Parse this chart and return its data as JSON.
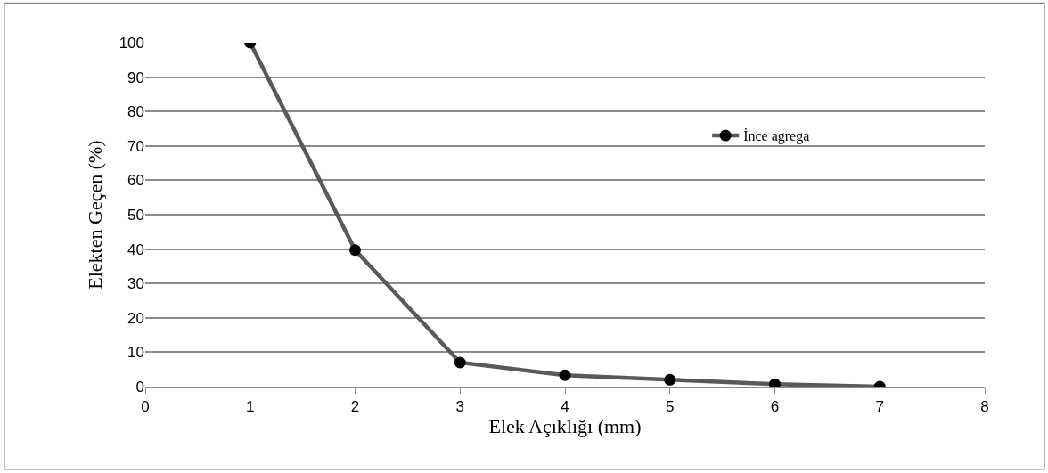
{
  "chart_data": {
    "type": "line",
    "xlabel": "Elek Açıklığı (mm)",
    "ylabel": "Elekten Geçen (%)",
    "x": [
      1,
      2,
      3,
      4,
      5,
      6,
      7
    ],
    "series": [
      {
        "name": "İnce agrega",
        "color": "#595959",
        "values": [
          100,
          39.7,
          7,
          3.3,
          2,
          0.7,
          0
        ]
      }
    ],
    "xlim": [
      0,
      8
    ],
    "xticks": [
      0,
      1,
      2,
      3,
      4,
      5,
      6,
      7,
      8
    ],
    "ylim": [
      0,
      100
    ],
    "yticks": [
      0,
      10,
      20,
      30,
      40,
      50,
      60,
      70,
      80,
      90,
      100
    ],
    "grid": "y",
    "legend": "top right",
    "marker": "circle",
    "line_style": "solid"
  }
}
